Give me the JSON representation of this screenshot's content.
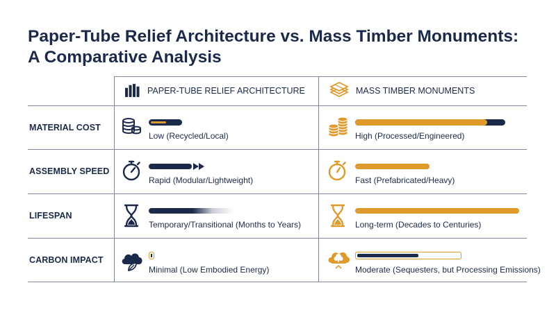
{
  "title": {
    "line1": "Paper-Tube Relief Architecture vs. Mass Timber Monuments:",
    "line2": "A Comparative Analysis"
  },
  "columns": [
    {
      "label": "PAPER-TUBE RELIEF ARCHITECTURE",
      "icon": "paper-tubes-icon",
      "accent": "#1b2a4a"
    },
    {
      "label": "MASS TIMBER MONUMENTS",
      "icon": "timber-stack-icon",
      "accent": "#e09a2b"
    }
  ],
  "rows": [
    {
      "label": "MATERIAL COST",
      "paper": {
        "text": "Low (Recycled/Local)",
        "icon": "coins-icon",
        "level": 0.18
      },
      "timber": {
        "text": "High (Processed/Engineered)",
        "icon": "coins-icon",
        "level": 0.88
      }
    },
    {
      "label": "ASSEMBLY SPEED",
      "paper": {
        "text": "Rapid (Modular/Lightweight)",
        "icon": "stopwatch-icon",
        "level": 0.85
      },
      "timber": {
        "text": "Fast (Prefabricated/Heavy)",
        "icon": "stopwatch-icon",
        "level": 0.5
      }
    },
    {
      "label": "LIFESPAN",
      "paper": {
        "text": "Temporary/Transitional (Months to Years)",
        "icon": "hourglass-icon",
        "level": 0.3
      },
      "timber": {
        "text": "Long-term (Decades to Centuries)",
        "icon": "hourglass-icon",
        "level": 1.0
      }
    },
    {
      "label": "CARBON IMPACT",
      "paper": {
        "text": "Minimal (Low Embodied Energy)",
        "icon": "cloud-leaf-icon",
        "level": 0.05
      },
      "timber": {
        "text": "Moderate (Sequesters, but Processing Emissions)",
        "icon": "cloud-tree-icon",
        "level": 0.6
      }
    }
  ],
  "colors": {
    "navy": "#1b2a4a",
    "orange": "#e09a2b",
    "line": "#7f8796"
  }
}
